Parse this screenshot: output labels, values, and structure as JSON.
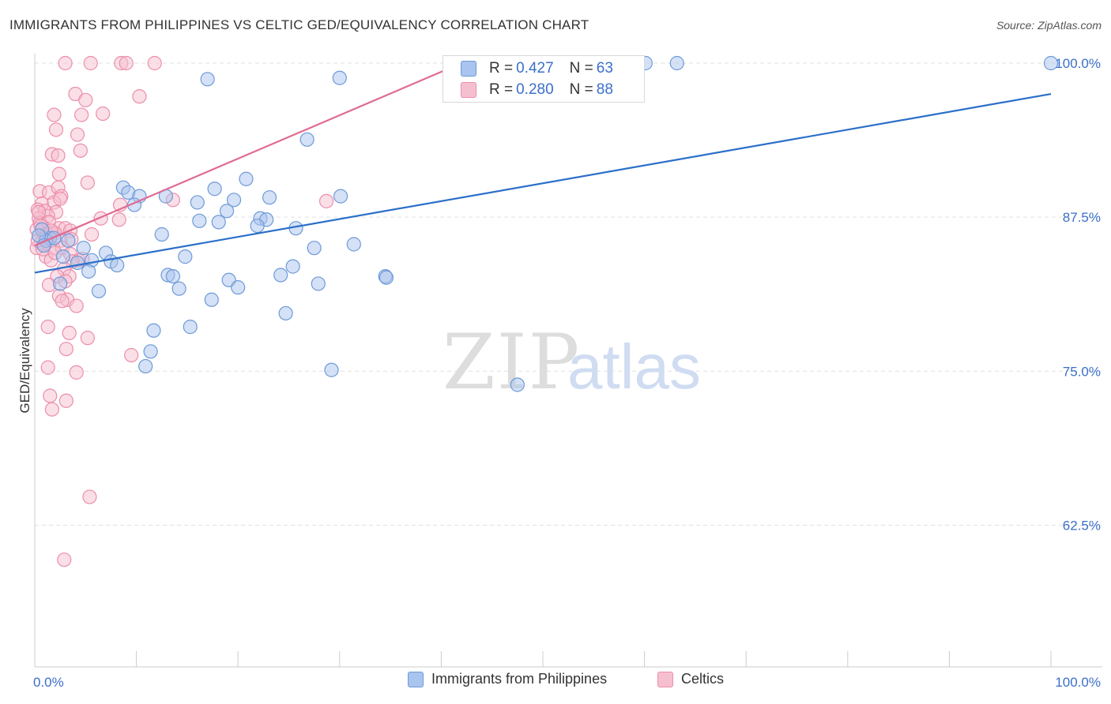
{
  "title": "IMMIGRANTS FROM PHILIPPINES VS CELTIC GED/EQUIVALENCY CORRELATION CHART",
  "source": "Source: ZipAtlas.com",
  "watermark": {
    "zip": "ZIP",
    "atlas": "atlas"
  },
  "stats": {
    "rows": [
      {
        "r_label": "R = ",
        "r_value": "0.427",
        "n_label": "N = ",
        "n_value": "63"
      },
      {
        "r_label": "R = ",
        "r_value": "0.280",
        "n_label": "N = ",
        "n_value": "88"
      }
    ]
  },
  "legend": {
    "items": [
      {
        "label": "Immigrants from Philippines"
      },
      {
        "label": "Celtics"
      }
    ]
  },
  "chart_data": {
    "type": "scatter",
    "ylabel": "GED/Equivalency",
    "xlabel": "",
    "xlim": [
      0,
      100
    ],
    "ylim": [
      51,
      100
    ],
    "x_tick_labels": [
      "0.0%",
      "100.0%"
    ],
    "y_ticks": [
      62.5,
      75.0,
      87.5,
      100.0
    ],
    "y_tick_labels": [
      "62.5%",
      "75.0%",
      "87.5%",
      "100.0%"
    ],
    "grid": true,
    "colors": {
      "blue_fill": "#a9c4ee",
      "blue_stroke": "#6e9ad8",
      "blue_line": "#2b6fc9",
      "pink_fill": "#f6bfd0",
      "pink_stroke": "#ec8eab",
      "pink_line": "#e06b93",
      "axis_label": "#3b6fc9"
    },
    "series": [
      {
        "name": "Immigrants from Philippines",
        "color": "blue",
        "trend": {
          "x": [
            0,
            100
          ],
          "y": [
            83.0,
            97.5
          ]
        },
        "points": [
          [
            60.1,
            100.0
          ],
          [
            63.2,
            100.0
          ],
          [
            100.0,
            100.0
          ],
          [
            17.0,
            98.7
          ],
          [
            30.0,
            98.8
          ],
          [
            26.8,
            93.8
          ],
          [
            20.8,
            90.6
          ],
          [
            8.7,
            89.9
          ],
          [
            17.7,
            89.8
          ],
          [
            9.2,
            89.5
          ],
          [
            10.3,
            89.2
          ],
          [
            12.9,
            89.2
          ],
          [
            23.1,
            89.1
          ],
          [
            30.1,
            89.2
          ],
          [
            19.6,
            88.9
          ],
          [
            16.0,
            88.7
          ],
          [
            9.8,
            88.5
          ],
          [
            18.9,
            88.0
          ],
          [
            22.2,
            87.4
          ],
          [
            22.8,
            87.3
          ],
          [
            16.2,
            87.2
          ],
          [
            18.1,
            87.1
          ],
          [
            21.9,
            86.8
          ],
          [
            25.7,
            86.6
          ],
          [
            12.5,
            86.1
          ],
          [
            1.5,
            85.8
          ],
          [
            4.8,
            85.0
          ],
          [
            27.5,
            85.0
          ],
          [
            31.4,
            85.3
          ],
          [
            7.0,
            84.6
          ],
          [
            14.8,
            84.3
          ],
          [
            1.1,
            85.6
          ],
          [
            5.6,
            84.0
          ],
          [
            7.5,
            83.9
          ],
          [
            4.2,
            83.8
          ],
          [
            8.1,
            83.6
          ],
          [
            25.4,
            83.5
          ],
          [
            5.3,
            83.1
          ],
          [
            13.1,
            82.8
          ],
          [
            13.6,
            82.7
          ],
          [
            24.2,
            82.8
          ],
          [
            34.5,
            82.7
          ],
          [
            34.6,
            82.6
          ],
          [
            19.1,
            82.4
          ],
          [
            27.9,
            82.1
          ],
          [
            2.5,
            82.1
          ],
          [
            20.0,
            81.8
          ],
          [
            14.2,
            81.7
          ],
          [
            6.3,
            81.5
          ],
          [
            17.4,
            80.8
          ],
          [
            24.7,
            79.7
          ],
          [
            15.3,
            78.6
          ],
          [
            11.7,
            78.3
          ],
          [
            11.4,
            76.6
          ],
          [
            10.9,
            75.4
          ],
          [
            29.2,
            75.1
          ],
          [
            47.5,
            73.9
          ],
          [
            0.7,
            86.5
          ],
          [
            1.9,
            85.8
          ],
          [
            0.4,
            86.0
          ],
          [
            0.9,
            85.2
          ],
          [
            2.8,
            84.3
          ],
          [
            3.3,
            85.6
          ]
        ]
      },
      {
        "name": "Celtics",
        "color": "pink",
        "trend": {
          "x": [
            0,
            42
          ],
          "y": [
            85.2,
            100.0
          ]
        },
        "points": [
          [
            3.0,
            100.0
          ],
          [
            5.5,
            100.0
          ],
          [
            8.5,
            100.0
          ],
          [
            9.0,
            100.0
          ],
          [
            11.8,
            100.0
          ],
          [
            4.0,
            97.5
          ],
          [
            10.3,
            97.3
          ],
          [
            5.0,
            97.0
          ],
          [
            1.9,
            95.8
          ],
          [
            6.7,
            95.9
          ],
          [
            4.6,
            95.8
          ],
          [
            2.1,
            94.6
          ],
          [
            4.2,
            94.2
          ],
          [
            4.5,
            92.9
          ],
          [
            1.7,
            92.6
          ],
          [
            2.3,
            92.5
          ],
          [
            2.4,
            91.0
          ],
          [
            5.2,
            90.3
          ],
          [
            0.5,
            89.6
          ],
          [
            1.4,
            89.5
          ],
          [
            2.3,
            89.9
          ],
          [
            2.6,
            89.2
          ],
          [
            0.7,
            88.6
          ],
          [
            1.9,
            88.7
          ],
          [
            13.6,
            88.9
          ],
          [
            8.4,
            88.5
          ],
          [
            2.5,
            89.0
          ],
          [
            0.3,
            88.1
          ],
          [
            1.0,
            88.0
          ],
          [
            2.1,
            87.9
          ],
          [
            28.7,
            88.8
          ],
          [
            1.3,
            87.6
          ],
          [
            0.4,
            87.4
          ],
          [
            6.5,
            87.4
          ],
          [
            8.3,
            87.3
          ],
          [
            0.5,
            87.0
          ],
          [
            1.4,
            87.1
          ],
          [
            0.8,
            86.7
          ],
          [
            2.4,
            86.6
          ],
          [
            0.2,
            86.5
          ],
          [
            3.0,
            86.6
          ],
          [
            1.6,
            86.2
          ],
          [
            3.5,
            86.4
          ],
          [
            2.0,
            86.2
          ],
          [
            5.6,
            86.1
          ],
          [
            0.9,
            86.0
          ],
          [
            3.6,
            85.7
          ],
          [
            2.5,
            85.6
          ],
          [
            0.6,
            85.4
          ],
          [
            1.0,
            85.3
          ],
          [
            0.2,
            85.0
          ],
          [
            1.8,
            85.0
          ],
          [
            2.7,
            85.0
          ],
          [
            3.5,
            84.5
          ],
          [
            1.1,
            84.3
          ],
          [
            1.6,
            84.0
          ],
          [
            4.3,
            84.0
          ],
          [
            4.7,
            84.1
          ],
          [
            3.7,
            83.9
          ],
          [
            2.9,
            83.3
          ],
          [
            3.4,
            82.7
          ],
          [
            2.2,
            82.7
          ],
          [
            3.0,
            82.3
          ],
          [
            1.4,
            82.0
          ],
          [
            2.4,
            81.1
          ],
          [
            3.2,
            80.8
          ],
          [
            2.7,
            80.7
          ],
          [
            4.1,
            80.3
          ],
          [
            1.3,
            78.6
          ],
          [
            3.4,
            78.1
          ],
          [
            5.2,
            77.7
          ],
          [
            3.1,
            76.8
          ],
          [
            9.5,
            76.3
          ],
          [
            1.3,
            75.3
          ],
          [
            4.1,
            74.9
          ],
          [
            1.5,
            73.0
          ],
          [
            3.1,
            72.6
          ],
          [
            1.7,
            71.9
          ],
          [
            5.4,
            64.8
          ],
          [
            2.9,
            59.7
          ],
          [
            0.6,
            86.8
          ],
          [
            1.2,
            86.1
          ],
          [
            0.3,
            85.6
          ],
          [
            0.8,
            84.9
          ],
          [
            2.0,
            84.6
          ],
          [
            1.6,
            86.4
          ],
          [
            0.4,
            87.9
          ],
          [
            1.1,
            85.8
          ]
        ]
      }
    ]
  }
}
